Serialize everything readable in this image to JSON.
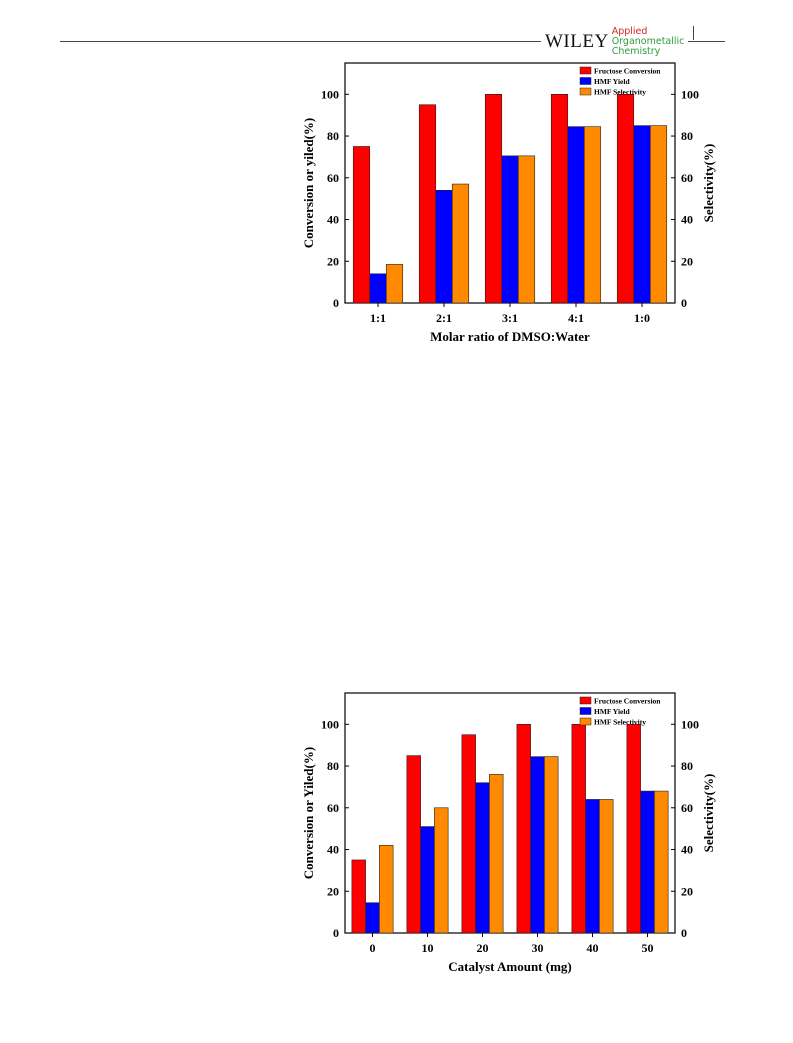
{
  "header": {
    "publisher": "WILEY",
    "journal_lines": [
      "Applied",
      "Organometallic",
      "Chemistry"
    ]
  },
  "colors": {
    "fructose_conversion": "#ff0000",
    "hmf_yield": "#0000ff",
    "hmf_selectivity": "#ff8a00"
  },
  "chart_data": [
    {
      "type": "bar",
      "categories": [
        "1:1",
        "2:1",
        "3:1",
        "4:1",
        "1:0"
      ],
      "series": [
        {
          "name": "Fructose Conversion",
          "values": [
            75,
            95,
            100,
            100,
            100
          ]
        },
        {
          "name": "HMF Yield",
          "values": [
            14,
            54,
            70.5,
            84.5,
            85
          ]
        },
        {
          "name": "HMF Selectivity",
          "values": [
            18.5,
            57,
            70.5,
            84.5,
            85
          ]
        }
      ],
      "xlabel": "Molar ratio of DMSO:Water",
      "ylabel": "Conversion or yiled(%)",
      "y2label": "Selectivity(%)",
      "ylim": [
        0,
        115
      ],
      "yticks": [
        0,
        20,
        40,
        60,
        80,
        100
      ],
      "legend": "top-right",
      "grid": false
    },
    {
      "type": "bar",
      "categories": [
        "0",
        "10",
        "20",
        "30",
        "40",
        "50"
      ],
      "series": [
        {
          "name": "Fructose Conversion",
          "values": [
            35,
            85,
            95,
            100,
            100,
            100
          ]
        },
        {
          "name": "HMF Yield",
          "values": [
            14.5,
            51,
            72,
            84.5,
            64,
            68
          ]
        },
        {
          "name": "HMF Selectivity",
          "values": [
            42,
            60,
            76,
            84.5,
            64,
            68
          ]
        }
      ],
      "xlabel": "Catalyst Amount (mg)",
      "ylabel": "Conversion or Yiled(%)",
      "y2label": "Selectivity(%)",
      "ylim": [
        0,
        115
      ],
      "yticks": [
        0,
        20,
        40,
        60,
        80,
        100
      ],
      "legend": "top-right",
      "grid": false
    }
  ]
}
